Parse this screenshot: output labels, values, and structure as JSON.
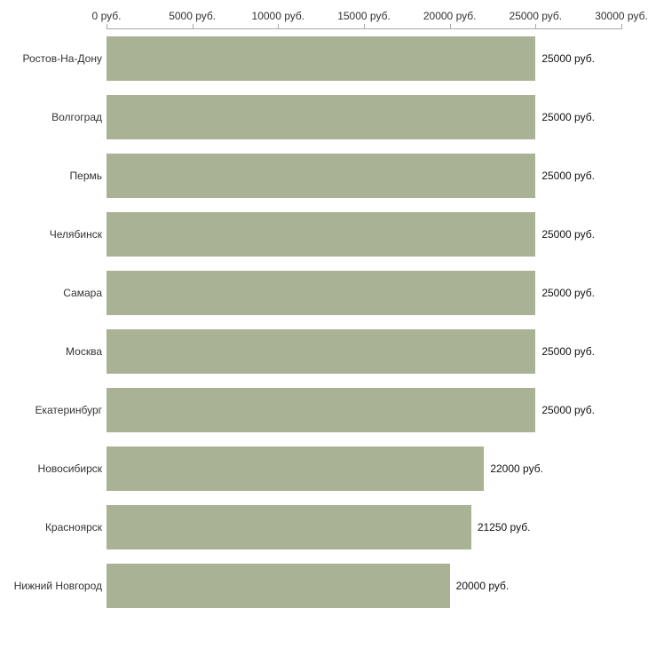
{
  "chart_data": {
    "type": "bar",
    "orientation": "horizontal",
    "title": "",
    "xlabel": "",
    "ylabel": "",
    "categories": [
      "Ростов-На-Дону",
      "Волгоград",
      "Пермь",
      "Челябинск",
      "Самара",
      "Москва",
      "Екатеринбург",
      "Новосибирск",
      "Красноярск",
      "Нижний Новгород"
    ],
    "values": [
      25000,
      25000,
      25000,
      25000,
      25000,
      25000,
      25000,
      22000,
      21250,
      20000
    ],
    "value_labels": [
      "25000 руб.",
      "25000 руб.",
      "25000 руб.",
      "25000 руб.",
      "25000 руб.",
      "25000 руб.",
      "25000 руб.",
      "22000 руб.",
      "21250 руб.",
      "20000 руб."
    ],
    "x_ticks": [
      0,
      5000,
      10000,
      15000,
      20000,
      25000,
      30000
    ],
    "x_tick_labels": [
      "0 руб.",
      "5000 руб.",
      "10000 руб.",
      "15000 руб.",
      "20000 руб.",
      "25000 руб.",
      "30000 руб."
    ],
    "xlim": [
      0,
      30000
    ],
    "grid": false,
    "legend": "none",
    "bar_color": "#a9b294",
    "axis_color": "#a8a8a8",
    "text_color": "#333333"
  }
}
